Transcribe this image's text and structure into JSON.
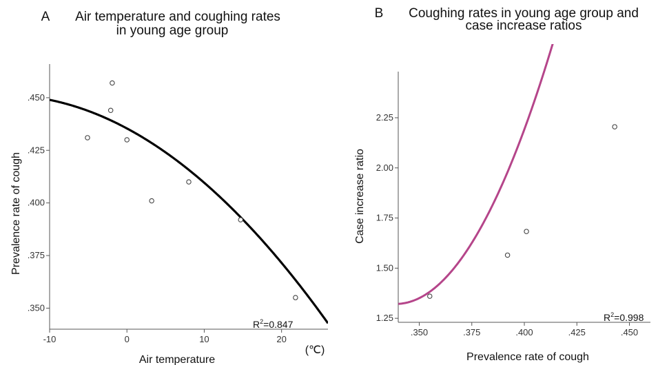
{
  "chart_data": [
    {
      "type": "scatter",
      "panel_letter": "A",
      "title": "Air temperature and coughing rates in young age group",
      "title_lines": [
        "Air temperature and coughing rates",
        "in young age group"
      ],
      "xlabel": "Air temperature",
      "ylabel": "Prevalence rate of cough",
      "x_unit_label": "(℃)",
      "xlim": [
        -10,
        26
      ],
      "ylim": [
        0.34,
        0.466
      ],
      "x_ticks": [
        -10,
        0,
        10,
        20
      ],
      "x_tick_labels": [
        "-10",
        "0",
        "10",
        "20"
      ],
      "y_ticks": [
        0.35,
        0.375,
        0.4,
        0.425,
        0.45
      ],
      "y_tick_labels": [
        ".350",
        ".375",
        ".400",
        ".425",
        ".450"
      ],
      "series": [
        {
          "points": [
            {
              "x": -5.1,
              "y": 0.431
            },
            {
              "x": -1.9,
              "y": 0.457
            },
            {
              "x": -2.1,
              "y": 0.444
            },
            {
              "x": 0.0,
              "y": 0.43
            },
            {
              "x": 3.2,
              "y": 0.401
            },
            {
              "x": 8.0,
              "y": 0.41
            },
            {
              "x": 14.7,
              "y": 0.392
            },
            {
              "x": 21.8,
              "y": 0.355
            }
          ]
        }
      ],
      "fit": {
        "type": "quadratic",
        "coefficients": [
          0.4354,
          -0.00197,
          -6.12e-05
        ],
        "color": "#000000"
      },
      "annotation": {
        "prefix": "R",
        "sup": "2",
        "suffix": "=0.847"
      },
      "grid": false,
      "legend": "none"
    },
    {
      "type": "scatter",
      "panel_letter": "B",
      "title": "Coughing rates in young age group and case increase ratios",
      "title_lines": [
        "Coughing rates in young age group and",
        "case increase ratios"
      ],
      "xlabel": "Prevalence rate of cough",
      "ylabel": "Case increase ratio",
      "xlim": [
        0.34,
        0.46
      ],
      "ylim": [
        1.23,
        2.48
      ],
      "x_ticks": [
        0.35,
        0.375,
        0.4,
        0.425,
        0.45
      ],
      "x_tick_labels": [
        ".350",
        ".375",
        ".400",
        ".425",
        ".450"
      ],
      "y_ticks": [
        1.25,
        1.5,
        1.75,
        2.0,
        2.25
      ],
      "y_tick_labels": [
        "1.25",
        "1.50",
        "1.75",
        "2.00",
        "2.25"
      ],
      "series": [
        {
          "points": [
            {
              "x": 0.355,
              "y": 1.36
            },
            {
              "x": 0.392,
              "y": 1.565
            },
            {
              "x": 0.401,
              "y": 1.683
            },
            {
              "x": 0.443,
              "y": 2.205
            }
          ]
        }
      ],
      "fit": {
        "type": "quadratic",
        "coefficients": [
          1.3218,
          0.337,
          232.9
        ],
        "x0": 0.3396,
        "color": "#b5458a"
      },
      "annotation": {
        "prefix": "R",
        "sup": "2",
        "suffix": "=0.998"
      },
      "grid": false,
      "legend": "none"
    }
  ]
}
